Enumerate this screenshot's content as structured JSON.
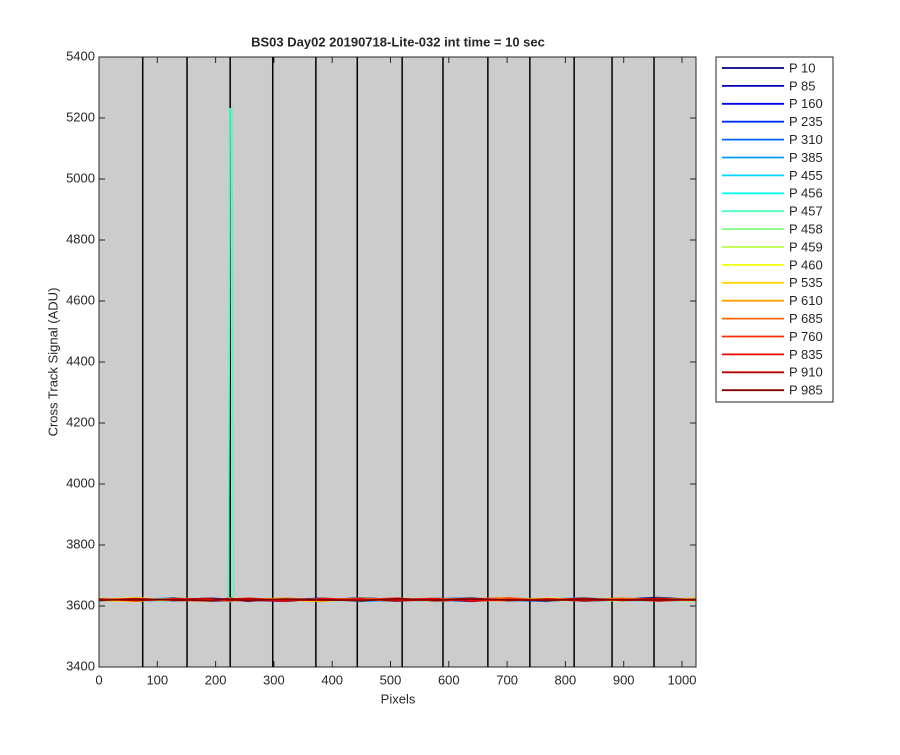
{
  "chart_data": {
    "type": "line",
    "title": "BS03 Day02 20190718-Lite-032 int time = 10 sec",
    "x_label": "Pixels",
    "y_label": "Cross Track Signal (ADU)",
    "xlim": [
      0,
      1024
    ],
    "ylim": [
      3400,
      5400
    ],
    "xticks": [
      0,
      100,
      200,
      300,
      400,
      500,
      600,
      700,
      800,
      900,
      1000
    ],
    "yticks": [
      3400,
      3600,
      3800,
      4000,
      4200,
      4400,
      4600,
      4800,
      5000,
      5200,
      5400
    ],
    "background": "#cccccc",
    "legend": "outside-right",
    "vertical_lines": [
      75,
      151,
      225,
      298,
      372,
      443,
      520,
      590,
      667,
      739,
      815,
      880,
      952
    ],
    "x": [
      0,
      64,
      128,
      192,
      222,
      225,
      228,
      231,
      256,
      320,
      384,
      448,
      512,
      576,
      640,
      704,
      768,
      832,
      896,
      960,
      1024
    ],
    "series": [
      {
        "name": "P 10",
        "color": "#000080",
        "values": [
          3622,
          3618,
          3627,
          3615,
          3620,
          3624,
          3619,
          3621,
          3626,
          3617,
          3623,
          3620,
          3616,
          3625,
          3621,
          3618,
          3624,
          3619,
          3622,
          3628,
          3620
        ]
      },
      {
        "name": "P 85",
        "color": "#0000b8",
        "values": [
          3619,
          3625,
          3616,
          3623,
          3621,
          3618,
          3626,
          3620,
          3615,
          3624,
          3619,
          3627,
          3621,
          3617,
          3623,
          3620,
          3615,
          3625,
          3618,
          3621,
          3624
        ]
      },
      {
        "name": "P 160",
        "color": "#0000f1",
        "values": [
          3625,
          3617,
          3622,
          3620,
          3616,
          3623,
          3621,
          3618,
          3624,
          3620,
          3626,
          3617,
          3622,
          3619,
          3615,
          3624,
          3621,
          3617,
          3626,
          3619,
          3618
        ]
      },
      {
        "name": "P 235",
        "color": "#002bff",
        "values": [
          3616,
          3623,
          3619,
          3626,
          3622,
          3617,
          3620,
          3625,
          3619,
          3615,
          3621,
          3624,
          3618,
          3623,
          3627,
          3616,
          3620,
          3624,
          3617,
          3622,
          3619
        ]
      },
      {
        "name": "P 310",
        "color": "#0063ff",
        "values": [
          3621,
          3619,
          3624,
          3617,
          3625,
          3620,
          3616,
          3622,
          3618,
          3626,
          3617,
          3621,
          3625,
          3615,
          3620,
          3623,
          3618,
          3621,
          3625,
          3616,
          3623
        ]
      },
      {
        "name": "P 385",
        "color": "#009cff",
        "values": [
          3624,
          3616,
          3620,
          3622,
          3618,
          3626,
          3623,
          3617,
          3621,
          3619,
          3624,
          3615,
          3620,
          3626,
          3618,
          3621,
          3625,
          3616,
          3620,
          3623,
          3617
        ]
      },
      {
        "name": "P 455",
        "color": "#00d4ff",
        "values": [
          3618,
          3622,
          3626,
          3619,
          3623,
          3615,
          3621,
          3624,
          3617,
          3622,
          3620,
          3625,
          3619,
          3618,
          3624,
          3616,
          3622,
          3627,
          3619,
          3617,
          3621
        ]
      },
      {
        "name": "P 456",
        "color": "#0efff1",
        "values": [
          3623,
          3620,
          3617,
          3625,
          3619,
          3622,
          3618,
          3620,
          3625,
          3616,
          3621,
          3619,
          3624,
          3620,
          3617,
          3626,
          3619,
          3621,
          3623,
          3618,
          3625
        ]
      },
      {
        "name": "P 457",
        "color": "#47ffb8",
        "values": [
          3620,
          3624,
          3618,
          3621,
          3623,
          5230,
          5230,
          3622,
          3619,
          3623,
          3616,
          3622,
          3620,
          3624,
          3619,
          3621,
          3617,
          3623,
          3616,
          3624,
          3620
        ]
      },
      {
        "name": "P 458",
        "color": "#80ff80",
        "values": [
          3617,
          3621,
          3623,
          3618,
          3620,
          3625,
          3617,
          3623,
          3620,
          3618,
          3625,
          3621,
          3617,
          3622,
          3626,
          3619,
          3623,
          3618,
          3621,
          3620,
          3616
        ]
      },
      {
        "name": "P 459",
        "color": "#b8ff47",
        "values": [
          3626,
          3619,
          3621,
          3624,
          3617,
          3621,
          3624,
          3619,
          3622,
          3625,
          3618,
          3620,
          3623,
          3616,
          3621,
          3625,
          3620,
          3617,
          3624,
          3619,
          3622
        ]
      },
      {
        "name": "P 460",
        "color": "#f1ff0e",
        "values": [
          3621,
          3627,
          3619,
          3616,
          3624,
          3619,
          3622,
          3626,
          3618,
          3621,
          3623,
          3617,
          3625,
          3621,
          3618,
          3620,
          3626,
          3622,
          3617,
          3625,
          3621
        ]
      },
      {
        "name": "P 535",
        "color": "#ffd400",
        "values": [
          3619,
          3615,
          3625,
          3622,
          3621,
          3617,
          3624,
          3620,
          3623,
          3619,
          3615,
          3626,
          3620,
          3618,
          3624,
          3622,
          3619,
          3625,
          3620,
          3618,
          3626
        ]
      },
      {
        "name": "P 610",
        "color": "#ff9c00",
        "values": [
          3624,
          3620,
          3618,
          3623,
          3616,
          3624,
          3620,
          3617,
          3621,
          3626,
          3620,
          3618,
          3622,
          3625,
          3619,
          3617,
          3623,
          3620,
          3626,
          3621,
          3618
        ]
      },
      {
        "name": "P 685",
        "color": "#ff6300",
        "values": [
          3618,
          3623,
          3621,
          3619,
          3625,
          3620,
          3616,
          3623,
          3626,
          3617,
          3622,
          3624,
          3618,
          3620,
          3623,
          3627,
          3618,
          3621,
          3619,
          3624,
          3620
        ]
      },
      {
        "name": "P 760",
        "color": "#ff2b00",
        "values": [
          3622,
          3617,
          3624,
          3620,
          3618,
          3623,
          3625,
          3619,
          3617,
          3622,
          3619,
          3621,
          3626,
          3617,
          3620,
          3618,
          3624,
          3619,
          3623,
          3616,
          3622
        ]
      },
      {
        "name": "P 835",
        "color": "#f10000",
        "values": [
          3620,
          3625,
          3619,
          3617,
          3622,
          3618,
          3621,
          3624,
          3620,
          3616,
          3625,
          3619,
          3621,
          3624,
          3616,
          3622,
          3620,
          3626,
          3618,
          3621,
          3619
        ]
      },
      {
        "name": "P 910",
        "color": "#b80000",
        "values": [
          3623,
          3618,
          3622,
          3625,
          3619,
          3621,
          3617,
          3622,
          3624,
          3620,
          3618,
          3623,
          3617,
          3621,
          3625,
          3619,
          3622,
          3617,
          3621,
          3624,
          3620
        ]
      },
      {
        "name": "P 985",
        "color": "#800000",
        "values": [
          3619,
          3622,
          3620,
          3618,
          3624,
          3619,
          3623,
          3620,
          3618,
          3623,
          3621,
          3617,
          3624,
          3619,
          3622,
          3620,
          3618,
          3623,
          3620,
          3619,
          3622
        ]
      }
    ]
  }
}
